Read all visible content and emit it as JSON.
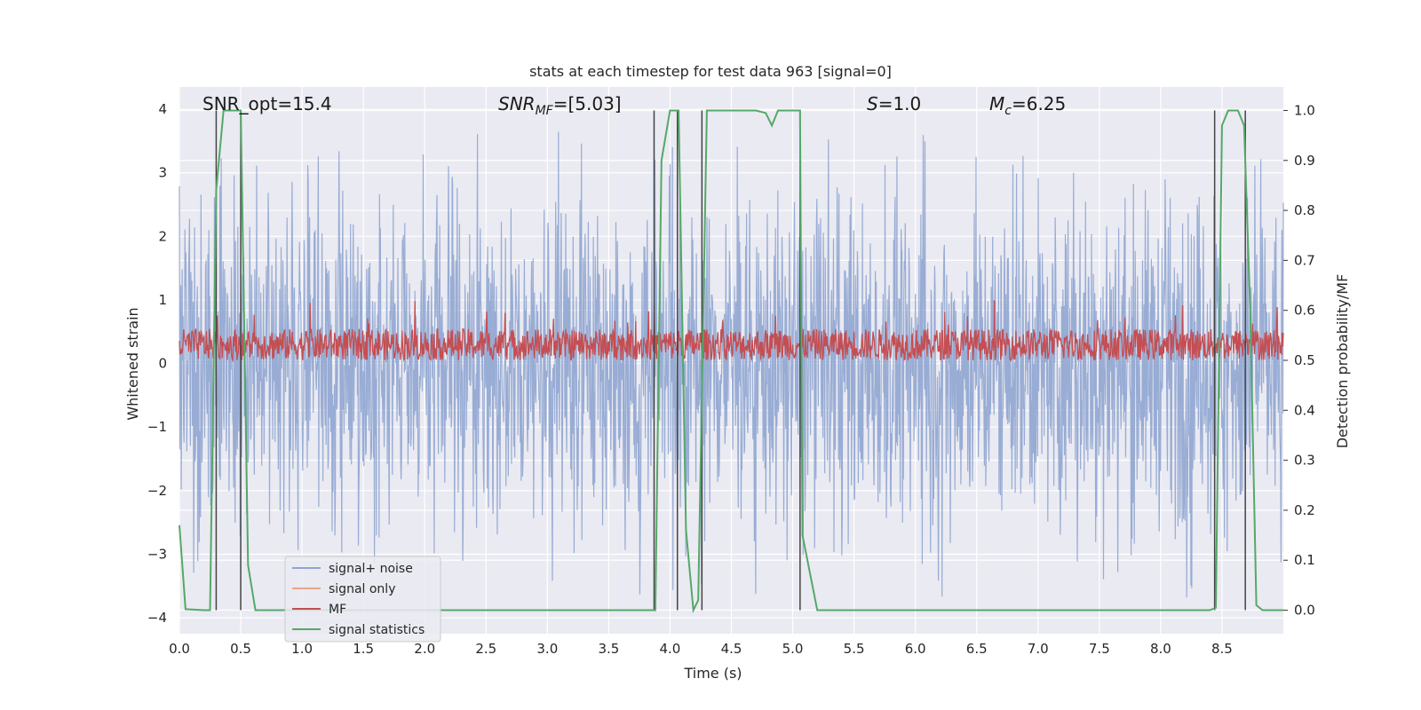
{
  "chart_data": {
    "type": "line",
    "title": "stats at each timestep for test data 963 [signal=0]",
    "xlabel": "Time (s)",
    "ylabel": "Whitened strain",
    "ylabel_right": "Detection probability/MF",
    "xlim": [
      0.0,
      9.0
    ],
    "ylim_left": [
      -4.25,
      4.35
    ],
    "ylim_right": [
      -0.047,
      1.047
    ],
    "x_ticks": [
      "0.0",
      "0.5",
      "1.0",
      "1.5",
      "2.0",
      "2.5",
      "3.0",
      "3.5",
      "4.0",
      "4.5",
      "5.0",
      "5.5",
      "6.0",
      "6.5",
      "7.0",
      "7.5",
      "8.0",
      "8.5"
    ],
    "y_ticks_left": [
      "−4",
      "−3",
      "−2",
      "−1",
      "0",
      "1",
      "2",
      "3",
      "4"
    ],
    "y_ticks_right": [
      "0.0",
      "0.1",
      "0.2",
      "0.3",
      "0.4",
      "0.5",
      "0.6",
      "0.7",
      "0.8",
      "0.9",
      "1.0"
    ],
    "grid": true,
    "background": "#eaeaf2",
    "legend": {
      "placement": "lower-left",
      "entries": [
        {
          "label": "signal+ noise",
          "color": "#8fa5d0"
        },
        {
          "label": "signal only",
          "color": "#e8a589"
        },
        {
          "label": "MF",
          "color": "#c44e52"
        },
        {
          "label": "signal statistics",
          "color": "#55a868"
        }
      ]
    },
    "annotations": {
      "snr_opt": "SNR_opt=15.4",
      "snr_mf_main": "SNR",
      "snr_mf_sub": "MF",
      "snr_mf_value": "=[5.03]",
      "s_main": "S",
      "s_value": "=1.0",
      "mc_main": "M",
      "mc_sub": "c",
      "mc_value": "=6.25"
    },
    "series": [
      {
        "name": "signal+ noise",
        "axis": "left",
        "color": "#8fa5d0",
        "description": "dense whitened-strain noise, roughly within ±2, spikes to about ±3.6",
        "envelope": {
          "typical": 2.0,
          "max": 3.7,
          "min": -3.7
        }
      },
      {
        "name": "signal only",
        "axis": "left",
        "color": "#e8a589",
        "values": []
      },
      {
        "name": "MF",
        "axis": "right",
        "color": "#c44e52",
        "description": "matched-filter output fluctuating between about 0.5 and 0.57, occasional peaks to 0.62",
        "envelope": {
          "low": 0.5,
          "high": 0.57,
          "peak": 0.62
        }
      },
      {
        "name": "signal statistics",
        "axis": "right",
        "color": "#55a868",
        "x": [
          0.0,
          0.05,
          0.2,
          0.25,
          0.3,
          0.36,
          0.42,
          0.5,
          0.56,
          0.62,
          0.65,
          3.88,
          3.93,
          4.0,
          4.07,
          4.13,
          4.19,
          4.23,
          4.3,
          4.55,
          4.7,
          4.78,
          4.83,
          4.88,
          4.93,
          5.06,
          5.08,
          5.2,
          5.25,
          8.4,
          8.45,
          8.5,
          8.55,
          8.63,
          8.68,
          8.73,
          8.78,
          8.83,
          8.9,
          9.0
        ],
        "y": [
          0.17,
          0.002,
          0.0,
          0.0,
          0.84,
          1.0,
          1.0,
          1.0,
          0.09,
          0.0,
          0.0,
          0.0,
          0.9,
          1.0,
          1.0,
          0.16,
          0.0,
          0.02,
          1.0,
          1.0,
          1.0,
          0.995,
          0.97,
          1.0,
          1.0,
          1.0,
          0.15,
          0.0,
          0.0,
          0.0,
          0.005,
          0.97,
          1.0,
          1.0,
          0.97,
          0.6,
          0.01,
          0.0,
          0.0,
          0.0
        ]
      }
    ],
    "vertical_markers": [
      {
        "x": 0.3,
        "color": "#444444"
      },
      {
        "x": 0.5,
        "color": "#444444"
      },
      {
        "x": 3.87,
        "color": "#444444"
      },
      {
        "x": 4.06,
        "color": "#444444"
      },
      {
        "x": 4.26,
        "color": "#444444"
      },
      {
        "x": 5.06,
        "color": "#444444"
      },
      {
        "x": 8.44,
        "color": "#444444"
      },
      {
        "x": 8.69,
        "color": "#444444"
      }
    ]
  }
}
